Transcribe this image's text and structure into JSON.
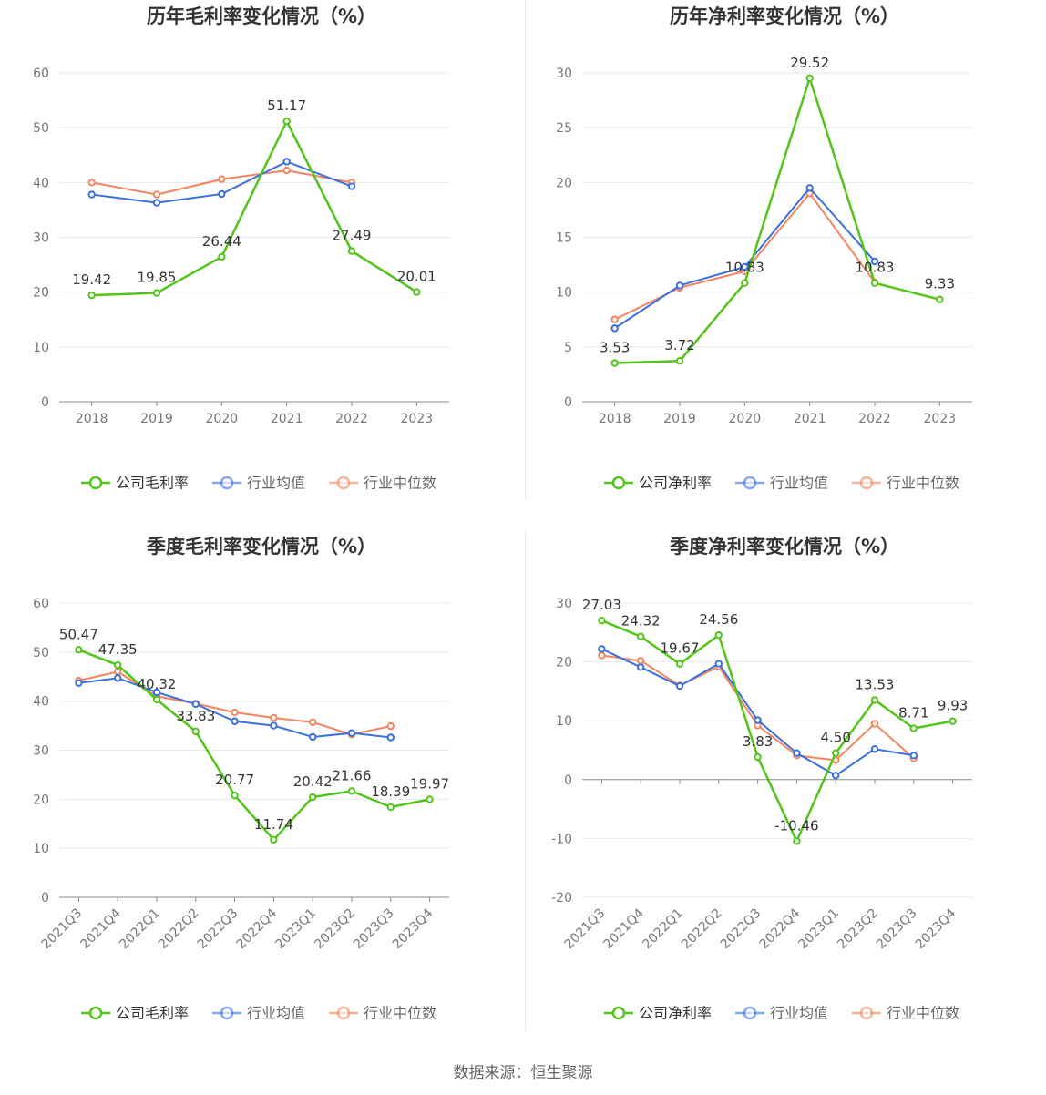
{
  "source_label": "数据来源：恒生聚源",
  "colors": {
    "company": "#52c41a",
    "industry_avg": "#3a6fe0",
    "industry_median": "#f4845f"
  },
  "chart_data": [
    {
      "type": "line",
      "title": "历年毛利率变化情况（%）",
      "categories": [
        "2018",
        "2019",
        "2020",
        "2021",
        "2022",
        "2023"
      ],
      "ylim": [
        0,
        60
      ],
      "yticks": [
        0,
        10,
        20,
        30,
        40,
        50,
        60
      ],
      "x_label_rotated": false,
      "legend_position": "bottom",
      "series": [
        {
          "name": "公司毛利率",
          "values": [
            19.42,
            19.85,
            26.44,
            51.17,
            27.49,
            20.01
          ],
          "labels": [
            "19.42",
            "19.85",
            "26.44",
            "51.17",
            "27.49",
            "20.01"
          ]
        },
        {
          "name": "行业均值",
          "values": [
            37.8,
            36.3,
            37.9,
            43.8,
            39.3,
            null
          ]
        },
        {
          "name": "行业中位数",
          "values": [
            40.0,
            37.8,
            40.6,
            42.2,
            40.0,
            null
          ]
        }
      ]
    },
    {
      "type": "line",
      "title": "历年净利率变化情况（%）",
      "categories": [
        "2018",
        "2019",
        "2020",
        "2021",
        "2022",
        "2023"
      ],
      "ylim": [
        0,
        30
      ],
      "yticks": [
        0,
        5,
        10,
        15,
        20,
        25,
        30
      ],
      "x_label_rotated": false,
      "legend_position": "bottom",
      "series": [
        {
          "name": "公司净利率",
          "values": [
            3.53,
            3.72,
            10.83,
            29.52,
            10.83,
            9.33
          ],
          "labels": [
            "3.53",
            "3.72",
            "10.83",
            "29.52",
            "10.83",
            "9.33"
          ]
        },
        {
          "name": "行业均值",
          "values": [
            6.7,
            10.6,
            12.3,
            19.5,
            12.8,
            null
          ]
        },
        {
          "name": "行业中位数",
          "values": [
            7.5,
            10.4,
            11.9,
            19.0,
            10.9,
            null
          ]
        }
      ]
    },
    {
      "type": "line",
      "title": "季度毛利率变化情况（%）",
      "categories": [
        "2021Q3",
        "2021Q4",
        "2022Q1",
        "2022Q2",
        "2022Q3",
        "2022Q4",
        "2023Q1",
        "2023Q2",
        "2023Q3",
        "2023Q4"
      ],
      "ylim": [
        0,
        60
      ],
      "yticks": [
        0,
        10,
        20,
        30,
        40,
        50,
        60
      ],
      "x_label_rotated": true,
      "legend_position": "bottom",
      "series": [
        {
          "name": "公司毛利率",
          "values": [
            50.47,
            47.35,
            40.32,
            33.83,
            20.77,
            11.74,
            20.42,
            21.66,
            18.39,
            19.97
          ],
          "labels": [
            "50.47",
            "47.35",
            "40.32",
            "33.83",
            "20.77",
            "11.74",
            "20.42",
            "21.66",
            "18.39",
            "19.97"
          ]
        },
        {
          "name": "行业均值",
          "values": [
            43.7,
            44.7,
            41.8,
            39.4,
            35.9,
            35.0,
            32.7,
            33.5,
            32.6,
            null
          ]
        },
        {
          "name": "行业中位数",
          "values": [
            44.2,
            46.0,
            41.0,
            39.5,
            37.7,
            36.6,
            35.7,
            33.2,
            34.9,
            null
          ]
        }
      ]
    },
    {
      "type": "line",
      "title": "季度净利率变化情况（%）",
      "categories": [
        "2021Q3",
        "2021Q4",
        "2022Q1",
        "2022Q2",
        "2022Q3",
        "2022Q4",
        "2023Q1",
        "2023Q2",
        "2023Q3",
        "2023Q4"
      ],
      "ylim": [
        -20,
        30
      ],
      "yticks": [
        -20,
        -10,
        0,
        10,
        20,
        30
      ],
      "x_label_rotated": true,
      "legend_position": "bottom",
      "series": [
        {
          "name": "公司净利率",
          "values": [
            27.03,
            24.32,
            19.67,
            24.56,
            3.83,
            -10.46,
            4.5,
            13.53,
            8.71,
            9.93
          ],
          "labels": [
            "27.03",
            "24.32",
            "19.67",
            "24.56",
            "3.83",
            "-10.46",
            "4.50",
            "13.53",
            "8.71",
            "9.93"
          ]
        },
        {
          "name": "行业均值",
          "values": [
            22.2,
            19.1,
            15.9,
            19.7,
            10.1,
            4.5,
            0.7,
            5.2,
            4.1,
            null
          ]
        },
        {
          "name": "行业中位数",
          "values": [
            21.1,
            20.2,
            16.0,
            19.2,
            9.2,
            4.1,
            3.3,
            9.5,
            3.6,
            null
          ]
        }
      ]
    }
  ]
}
